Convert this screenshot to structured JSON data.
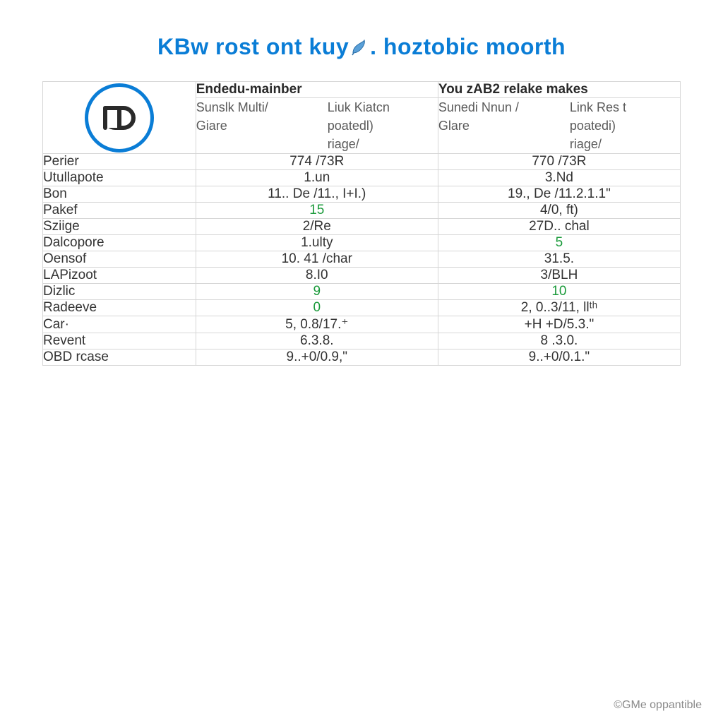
{
  "title": {
    "part1": "KBw rost ont kuy",
    "part2": ".  hoztobic moorth",
    "color": "#0a7dd6",
    "fontsize": 32
  },
  "colors": {
    "border": "#d6d6d6",
    "text": "#333333",
    "subtext": "#5a5a5a",
    "accent": "#0a7dd6",
    "green": "#1a9a3a",
    "background": "#ffffff",
    "credit": "#8a8a8a"
  },
  "logo": {
    "ring_color": "#0a7dd6",
    "glyph_color": "#2a2a2a"
  },
  "table": {
    "columns": [
      {
        "header1": "Endedu-mainber",
        "header2_left_lines": [
          "Sunslk Multi/",
          "Giare"
        ],
        "header2_right_lines": [
          "Liuk Kiatcn",
          "poatedl)",
          "riage/"
        ]
      },
      {
        "header1": "You zAB2 relake makes",
        "header2_left_lines": [
          "Sunedi Nnun /",
          "Glare"
        ],
        "header2_right_lines": [
          "Link Res t",
          "poatedi)",
          "riage/"
        ]
      }
    ],
    "rows": [
      {
        "label": "Perier",
        "c1": {
          "text": "774 /73R"
        },
        "c2": {
          "text": "770 /73R"
        }
      },
      {
        "label": "Utullapote",
        "c1": {
          "text": "1.un"
        },
        "c2": {
          "text": "3.Nd"
        }
      },
      {
        "label": "Bon",
        "c1": {
          "text": "11.. De /11., I+I.)"
        },
        "c2": {
          "text": "19., De /11.2.1.1\""
        }
      },
      {
        "label": "Pakef",
        "c1": {
          "text": "15",
          "green": true
        },
        "c2": {
          "text": "4/0, ft)"
        }
      },
      {
        "label": "Sziige",
        "c1": {
          "text": "2/Re"
        },
        "c2": {
          "text": "27D.. chal"
        }
      },
      {
        "label": "Dalcopore",
        "c1": {
          "text": "1.ulty"
        },
        "c2": {
          "text": "5",
          "green": true
        }
      },
      {
        "label": "Oensof",
        "c1": {
          "text": "10. 41 /char"
        },
        "c2": {
          "text": "31.5."
        }
      },
      {
        "label": "LAPizoot",
        "c1": {
          "text": "8.I0"
        },
        "c2": {
          "text": "3/BLH"
        }
      },
      {
        "label": "Dizlic",
        "c1": {
          "text": "9",
          "green": true
        },
        "c2": {
          "text": "10",
          "green": true
        }
      },
      {
        "label": "Radeeve",
        "c1": {
          "text": "0",
          "green": true
        },
        "c2": {
          "text": "2, 0..3/11, llᵗʰ"
        }
      },
      {
        "label": "Car·",
        "c1": {
          "text": "5, 0.8/17.⁺"
        },
        "c2": {
          "text": "+H +D/5.3.\""
        }
      },
      {
        "label": "Revent",
        "c1": {
          "text": "6.3.8."
        },
        "c2": {
          "text": "8 .3.0."
        }
      },
      {
        "label": "OBD rcase",
        "c1": {
          "text": "9..+0/0.9,\""
        },
        "c2": {
          "text": "9..+0/0.1.\""
        }
      }
    ]
  },
  "credit": "©GMe oppantible"
}
